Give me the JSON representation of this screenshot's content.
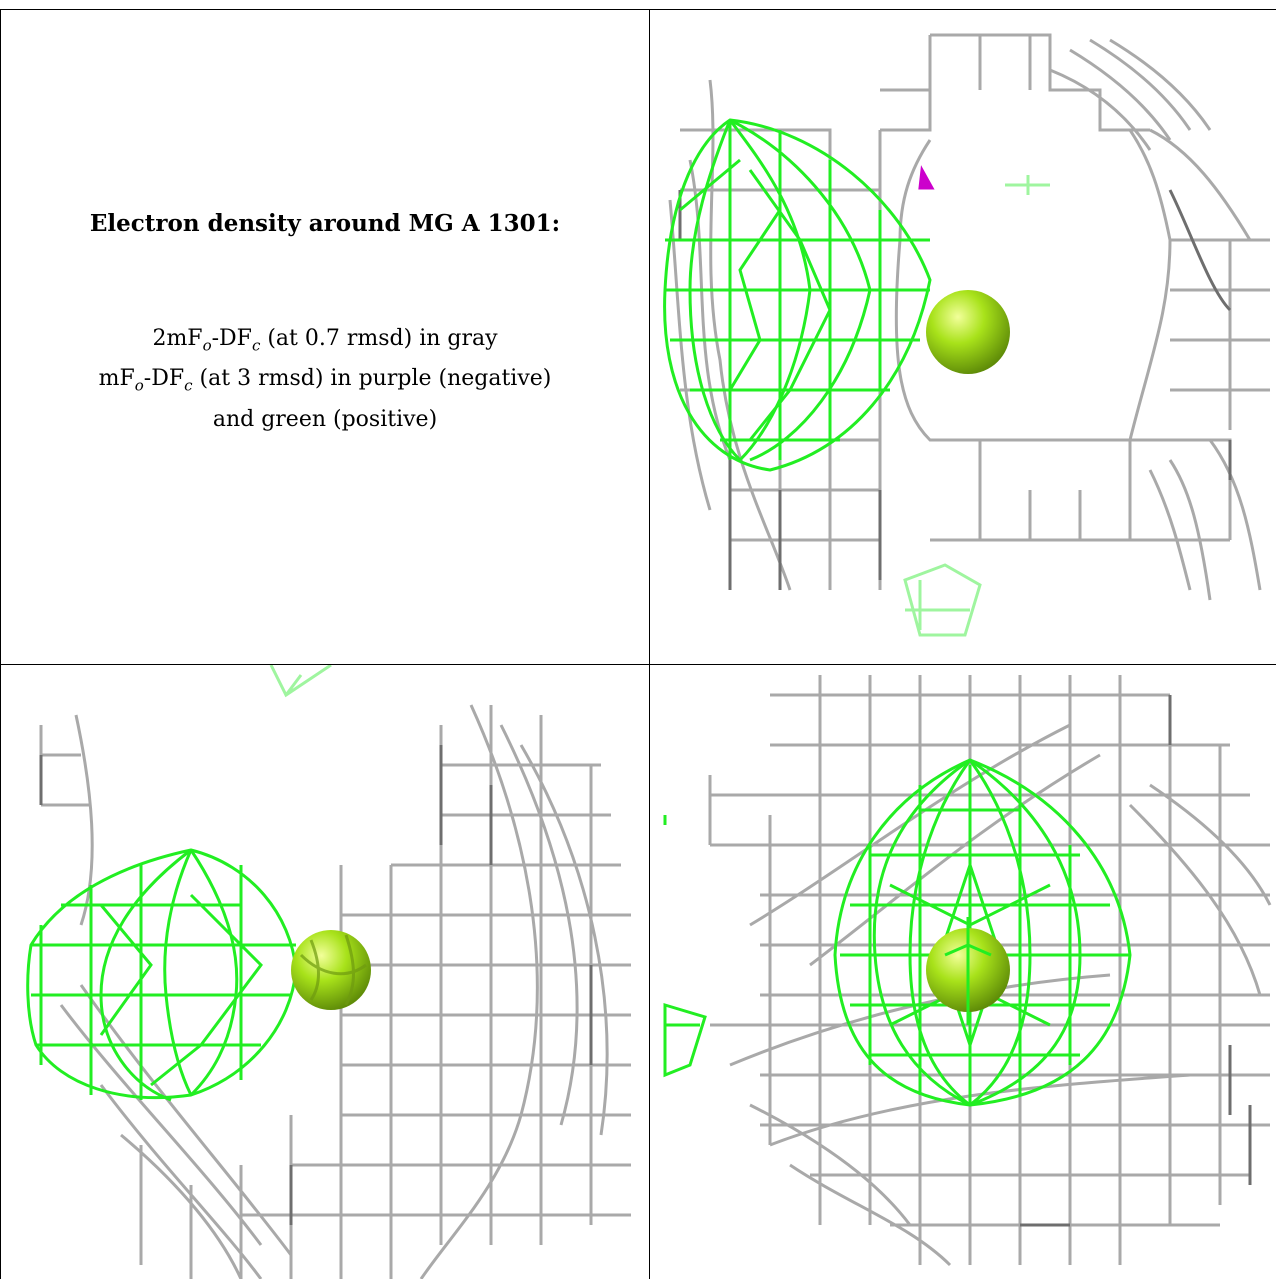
{
  "caption": {
    "title": "Electron density around MG A 1301:",
    "line1_a": "2mF",
    "line1_o": "o",
    "line1_b": "-DF",
    "line1_c": "c",
    "line1_rest": " (at 0.7 rmsd) in gray",
    "line2_a": "mF",
    "line2_o": "o",
    "line2_b": "-DF",
    "line2_c": "c",
    "line2_rest": " (at 3 rmsd) in purple (negative)",
    "line3": "and green (positive)"
  },
  "colors": {
    "gray_mesh": "#a9a9a9",
    "dark_mesh": "#6e6e6e",
    "green_mesh": "#22ee22",
    "purple_mesh": "#cc00cc",
    "sphere": "#a8e21a",
    "rule": "#000000"
  },
  "views": [
    {
      "name": "view-top-right",
      "label": ""
    },
    {
      "name": "view-bottom-left",
      "label": ""
    },
    {
      "name": "view-bottom-right",
      "label": ""
    }
  ]
}
